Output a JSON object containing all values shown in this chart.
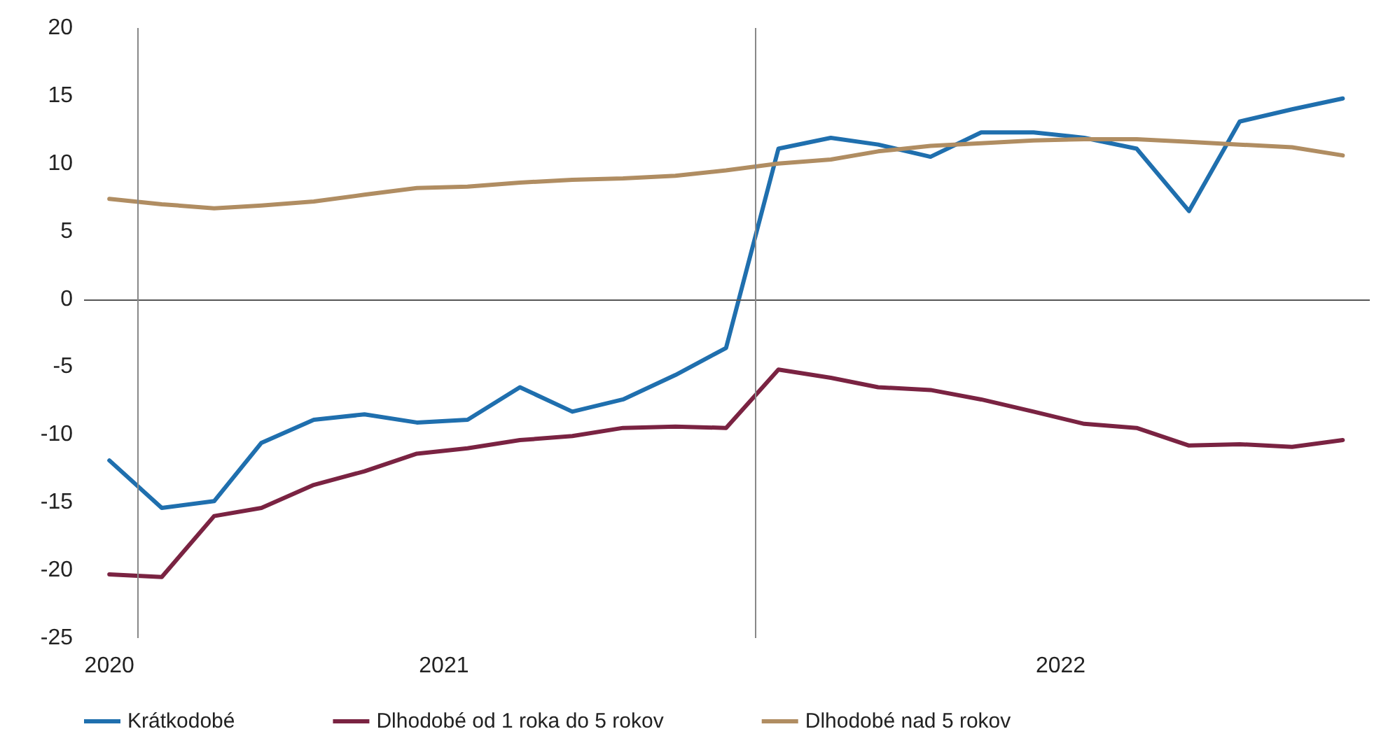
{
  "chart_data": {
    "type": "line",
    "x": [
      "2020-12-15",
      "2021-01-15",
      "2021-02-15",
      "2021-03-15",
      "2021-04-15",
      "2021-05-15",
      "2021-06-15",
      "2021-07-15",
      "2021-08-15",
      "2021-09-15",
      "2021-10-15",
      "2021-11-15",
      "2021-12-15",
      "2022-01-15",
      "2022-02-15",
      "2022-03-15",
      "2022-04-15",
      "2022-05-15",
      "2022-06-15",
      "2022-07-15",
      "2022-08-15",
      "2022-09-15",
      "2022-10-15",
      "2022-11-15",
      "2022-12-15"
    ],
    "series": [
      {
        "name": "Krátkodobé",
        "color": "#1f6fae",
        "values": [
          -11.9,
          -15.4,
          -14.9,
          -10.6,
          -8.9,
          -8.5,
          -9.1,
          -8.9,
          -6.5,
          -8.3,
          -7.4,
          -5.6,
          -3.6,
          11.1,
          11.9,
          11.4,
          10.5,
          12.3,
          12.3,
          11.9,
          11.1,
          6.5,
          13.1,
          14.0,
          14.8
        ]
      },
      {
        "name": "Dlhodobé od 1 roka do 5 rokov",
        "color": "#7a2342",
        "values": [
          -20.3,
          -20.5,
          -16.0,
          -15.4,
          -13.7,
          -12.7,
          -11.4,
          -11.0,
          -10.4,
          -10.1,
          -9.5,
          -9.4,
          -9.5,
          -5.2,
          -5.8,
          -6.5,
          -6.7,
          -7.4,
          -8.3,
          -9.2,
          -9.5,
          -10.8,
          -10.7,
          -10.9,
          -10.4
        ]
      },
      {
        "name": "Dlhodobé nad 5 rokov",
        "color": "#b08d62",
        "values": [
          7.4,
          7.0,
          6.7,
          6.9,
          7.2,
          7.7,
          8.2,
          8.3,
          8.6,
          8.8,
          8.9,
          9.1,
          9.5,
          10.0,
          10.3,
          10.9,
          11.3,
          11.5,
          11.7,
          11.8,
          11.8,
          11.6,
          11.4,
          11.2,
          10.6
        ]
      }
    ],
    "xlim": [
      "2020-11-30",
      "2022-12-31"
    ],
    "xticks": [
      {
        "value": "2020-12-15",
        "label": "2020"
      },
      {
        "value": "2021-07-01",
        "label": "2021"
      },
      {
        "value": "2022-07-01",
        "label": "2022"
      }
    ],
    "ylim": [
      -25,
      20
    ],
    "yticks": [
      -25,
      -20,
      -15,
      -10,
      -5,
      0,
      5,
      10,
      15,
      20
    ],
    "ref_lines": [
      {
        "axis": "y",
        "value": 0,
        "color": "#555555"
      },
      {
        "axis": "x",
        "value": "2021-01-01",
        "color": "#888888"
      },
      {
        "axis": "x",
        "value": "2022-01-01",
        "color": "#888888"
      }
    ],
    "grid": false,
    "legend": "bottom left",
    "marker": "none",
    "line_style": "solid"
  }
}
